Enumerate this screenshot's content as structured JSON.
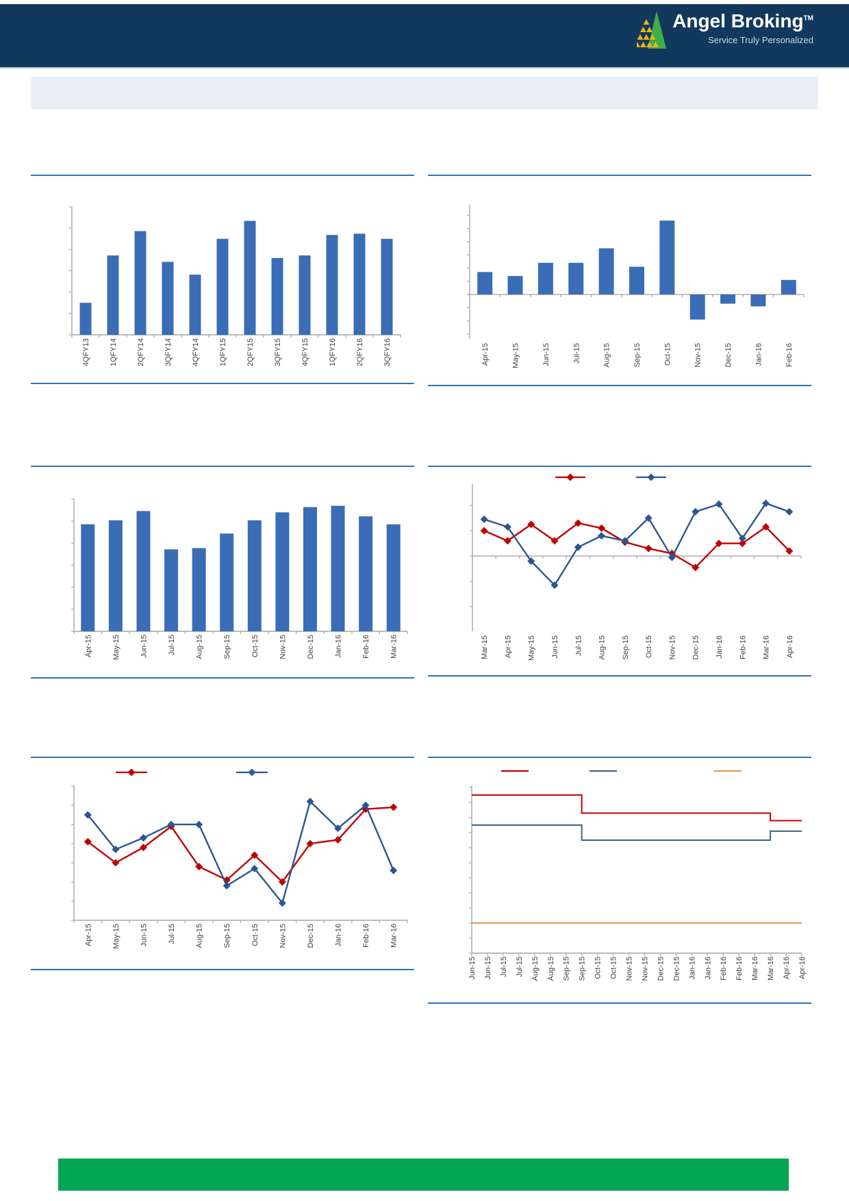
{
  "header": {
    "brand": "Angel Broking",
    "trademark": "TM",
    "tagline": "Service Truly Personalized",
    "logo_icon": "angel-pyramid-icon",
    "colors": {
      "band": "#12395D",
      "brand_text": "#FFFFFF",
      "tagline_text": "#C5D9E8",
      "icon_green": "#3FAE49",
      "icon_yellow": "#F0B310"
    }
  },
  "colors": {
    "rule_blue": "#2E74B5",
    "bar_blue": "#3A6DB5",
    "series_red": "#C00000",
    "series_navy": "#2B5691",
    "series_slate": "#3E6287",
    "series_orange": "#E29C45",
    "axis_gray": "#A6A6A6",
    "label_text": "#3D3D3D",
    "banner_bg": "#E9F0F7",
    "footer_green": "#00A651"
  },
  "chart_data": [
    {
      "id": "c1",
      "name": "quarterly-bar-chart",
      "type": "bar",
      "categories": [
        "4QFY13",
        "1QFY14",
        "2QFY14",
        "3QFY14",
        "4QFY14",
        "1QFY15",
        "2QFY15",
        "3QFY15",
        "4QFY15",
        "1QFY16",
        "2QFY16",
        "3QFY16"
      ],
      "values": [
        25,
        62,
        81,
        57,
        47,
        75,
        89,
        60,
        62,
        78,
        79,
        75
      ],
      "ylim": [
        0,
        100
      ],
      "bar_color": "#3A6DB5",
      "title": "",
      "xlabel": "",
      "ylabel": ""
    },
    {
      "id": "c2",
      "name": "monthly-net-bar-chart",
      "type": "bar",
      "categories": [
        "Apr-15",
        "May-15",
        "Jun-15",
        "Jul-15",
        "Aug-15",
        "Sep-15",
        "Oct-15",
        "Nov-15",
        "Dec-15",
        "Jan-16",
        "Feb-16"
      ],
      "values": [
        1.7,
        1.4,
        2.4,
        2.4,
        3.5,
        2.1,
        5.6,
        -1.9,
        -0.7,
        -0.9,
        1.1
      ],
      "ylim": [
        -3.37,
        6.8
      ],
      "bar_color": "#3A6DB5",
      "title": "",
      "xlabel": "",
      "ylabel": ""
    },
    {
      "id": "c3",
      "name": "monthly-bar-chart",
      "type": "bar",
      "categories": [
        "Apr-15",
        "May-15",
        "Jun-15",
        "Jul-15",
        "Aug-15",
        "Sep-15",
        "Oct-15",
        "Nov-15",
        "Dec-15",
        "Jan-16",
        "Feb-16",
        "Mar-16"
      ],
      "values": [
        81,
        84,
        91,
        62,
        63,
        74,
        84,
        90,
        94,
        95,
        87,
        81
      ],
      "ylim": [
        0,
        100
      ],
      "bar_color": "#3A6DB5",
      "title": "",
      "xlabel": "",
      "ylabel": ""
    },
    {
      "id": "c4",
      "name": "two-series-diamond-line-chart",
      "type": "line",
      "categories": [
        "Mar-15",
        "Apr-15",
        "May-15",
        "Jun-15",
        "Jul-15",
        "Aug-15",
        "Sep-15",
        "Oct-15",
        "Nov-15",
        "Dec-15",
        "Jan-16",
        "Feb-16",
        "Mar-16",
        "Apr-16"
      ],
      "series": [
        {
          "name": "red-series",
          "color": "#C00000",
          "values": [
            1.0,
            0.6,
            1.25,
            0.6,
            1.3,
            1.1,
            0.55,
            0.3,
            0.1,
            -0.45,
            0.5,
            0.5,
            1.15,
            0.2
          ]
        },
        {
          "name": "navy-series",
          "color": "#2B5691",
          "values": [
            1.45,
            1.15,
            -0.2,
            -1.15,
            0.35,
            0.8,
            0.6,
            1.5,
            -0.05,
            1.75,
            2.05,
            0.7,
            2.08,
            1.75
          ]
        }
      ],
      "ylim": [
        -2.97,
        2.84
      ],
      "legend_marker_colors": [
        "#C00000",
        "#2B5691"
      ],
      "title": "",
      "xlabel": "",
      "ylabel": ""
    },
    {
      "id": "c5",
      "name": "two-series-diamond-line-chart-2",
      "type": "line",
      "categories": [
        "Apr-15",
        "May-15",
        "Jun-15",
        "Jul-15",
        "Aug-15",
        "Sep-15",
        "Oct-15",
        "Nov-15",
        "Dec-15",
        "Jan-16",
        "Feb-16",
        "Mar-16"
      ],
      "series": [
        {
          "name": "red-series",
          "color": "#C00000",
          "values": [
            4.1,
            3.0,
            3.8,
            4.9,
            2.8,
            2.1,
            3.4,
            2.0,
            4.0,
            4.2,
            5.8,
            5.9
          ]
        },
        {
          "name": "navy-series",
          "color": "#2B5691",
          "values": [
            5.5,
            3.7,
            4.3,
            5.0,
            5.0,
            1.8,
            2.7,
            0.9,
            6.2,
            4.8,
            6.0,
            2.6
          ]
        }
      ],
      "ylim": [
        0,
        7.04
      ],
      "legend_marker_colors": [
        "#C00000",
        "#2B5691"
      ],
      "title": "",
      "xlabel": "",
      "ylabel": ""
    },
    {
      "id": "c6",
      "name": "three-series-step-line-chart",
      "type": "line",
      "step": true,
      "categories": [
        "Jun-15",
        "Jun-15",
        "Jul-15",
        "Jul-15",
        "Aug-15",
        "Aug-15",
        "Sep-15",
        "Sep-15",
        "Oct-15",
        "Oct-15",
        "Nov-15",
        "Nov-15",
        "Dec-15",
        "Dec-15",
        "Jan-16",
        "Jan-16",
        "Feb-16",
        "Feb-16",
        "Mar-16",
        "Mar-16",
        "Apr-16",
        "Apr-16"
      ],
      "series": [
        {
          "name": "red-step",
          "color": "#C00000",
          "values": [
            10.5,
            10.5,
            10.5,
            10.5,
            10.5,
            10.5,
            10.5,
            9.3,
            9.3,
            9.3,
            9.3,
            9.3,
            9.3,
            9.3,
            9.3,
            9.3,
            9.3,
            9.3,
            9.3,
            8.8,
            8.8,
            8.8
          ]
        },
        {
          "name": "slate-step",
          "color": "#3E6287",
          "values": [
            8.5,
            8.5,
            8.5,
            8.5,
            8.5,
            8.5,
            8.5,
            7.5,
            7.5,
            7.5,
            7.5,
            7.5,
            7.5,
            7.5,
            7.5,
            7.5,
            7.5,
            7.5,
            7.5,
            8.1,
            8.1,
            8.1
          ]
        },
        {
          "name": "orange-step",
          "color": "#E29C45",
          "values": [
            2.0,
            2.0,
            2.0,
            2.0,
            2.0,
            2.0,
            2.0,
            2.0,
            2.0,
            2.0,
            2.0,
            2.0,
            2.0,
            2.0,
            2.0,
            2.0,
            2.0,
            2.0,
            2.0,
            2.0,
            2.0,
            2.0
          ]
        }
      ],
      "ylim": [
        0,
        11.14
      ],
      "legend_marker_colors": [
        "#C00000",
        "#3E6287",
        "#E29C45"
      ],
      "title": "",
      "xlabel": "",
      "ylabel": ""
    }
  ]
}
